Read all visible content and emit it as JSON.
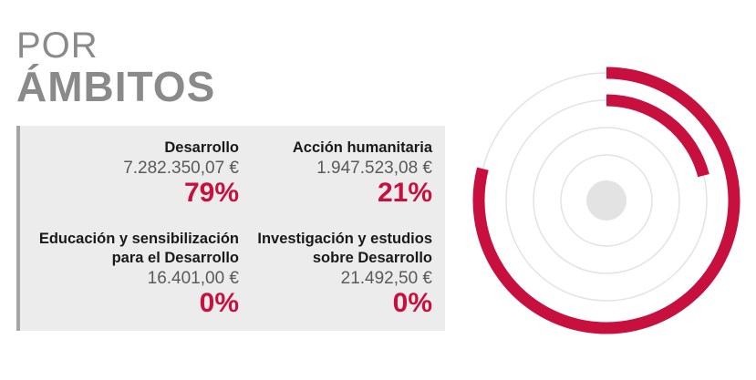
{
  "header": {
    "title_light": "POR",
    "title_bold": "ÁMBITOS"
  },
  "items": [
    {
      "name_lines": [
        "Desarrollo"
      ],
      "amount": "7.282.350,07 €",
      "percent_label": "79%"
    },
    {
      "name_lines": [
        "Acción humanitaria"
      ],
      "amount": "1.947.523,08 €",
      "percent_label": "21%"
    },
    {
      "name_lines": [
        "Educación y sensibilización",
        "para el Desarrollo"
      ],
      "amount": "16.401,00 €",
      "percent_label": "0%"
    },
    {
      "name_lines": [
        "Investigación y estudios",
        "sobre Desarrollo"
      ],
      "amount": "21.492,50 €",
      "percent_label": "0%"
    }
  ],
  "colors": {
    "accent": "#c8103e",
    "track": "#e3e3e3",
    "panel": "#ececec",
    "title": "#8a8a8a"
  },
  "chart_data": {
    "type": "radial-bar",
    "categories": [
      "Desarrollo",
      "Acción humanitaria",
      "Educación y sensibilización para el Desarrollo",
      "Investigación y estudios sobre Desarrollo"
    ],
    "values": [
      79,
      21,
      0,
      0
    ],
    "unit": "%",
    "amounts": [
      7282350.07,
      1947523.08,
      16401.0,
      21492.5
    ]
  }
}
